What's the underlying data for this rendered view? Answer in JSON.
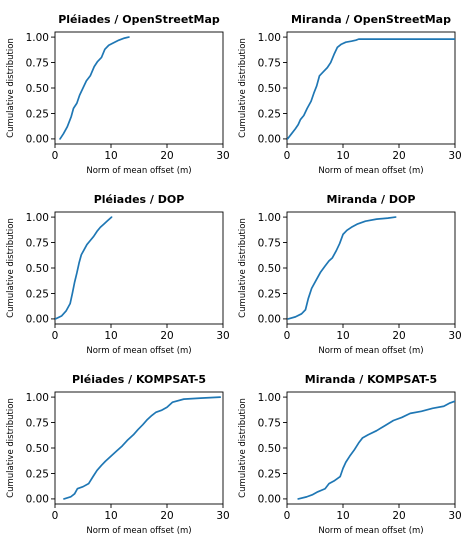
{
  "style": {
    "line_color": "#1f77b4",
    "background": "#ffffff"
  },
  "chart_data": [
    {
      "type": "line",
      "title": "Pléiades / OpenStreetMap",
      "xlabel": "Norm of mean offset (m)",
      "ylabel": "Cumulative distribution",
      "xlim": [
        0,
        30
      ],
      "ylim": [
        0,
        1
      ],
      "xticks": [
        "0",
        "10",
        "20",
        "30"
      ],
      "yticks": [
        "0.00",
        "0.25",
        "0.50",
        "0.75",
        "1.00"
      ],
      "grid": false,
      "series": [
        {
          "x": [
            0.9,
            1.5,
            2.2,
            2.9,
            3.3,
            3.9,
            4.4,
            5.0,
            5.6,
            6.3,
            7.0,
            7.6,
            8.3,
            8.9,
            9.6,
            10.3,
            11.4,
            12.4,
            13.2
          ],
          "y": [
            0.0,
            0.05,
            0.12,
            0.22,
            0.3,
            0.35,
            0.43,
            0.5,
            0.57,
            0.62,
            0.71,
            0.76,
            0.8,
            0.88,
            0.92,
            0.94,
            0.97,
            0.99,
            1.0
          ]
        }
      ]
    },
    {
      "type": "line",
      "title": "Miranda / OpenStreetMap",
      "xlabel": "Norm of mean offset (m)",
      "ylabel": "Cumulative distribution",
      "xlim": [
        0,
        30
      ],
      "ylim": [
        0,
        1
      ],
      "xticks": [
        "0",
        "10",
        "20",
        "30"
      ],
      "yticks": [
        "0.00",
        "0.25",
        "0.50",
        "0.75",
        "1.00"
      ],
      "grid": false,
      "series": [
        {
          "x": [
            0.1,
            0.8,
            1.5,
            2.0,
            2.4,
            3.0,
            3.6,
            4.3,
            4.8,
            5.3,
            5.8,
            6.5,
            7.2,
            7.8,
            8.4,
            9.0,
            9.7,
            10.5,
            11.5,
            12.3,
            12.8,
            30.0
          ],
          "y": [
            0.0,
            0.05,
            0.1,
            0.14,
            0.19,
            0.23,
            0.3,
            0.37,
            0.45,
            0.52,
            0.62,
            0.66,
            0.7,
            0.75,
            0.83,
            0.9,
            0.93,
            0.95,
            0.96,
            0.97,
            0.98,
            0.98
          ]
        }
      ]
    },
    {
      "type": "line",
      "title": "Pléiades / DOP",
      "xlabel": "Norm of mean offset (m)",
      "ylabel": "Cumulative distribution",
      "xlim": [
        0,
        30
      ],
      "ylim": [
        0,
        1
      ],
      "xticks": [
        "0",
        "10",
        "20",
        "30"
      ],
      "yticks": [
        "0.00",
        "0.25",
        "0.50",
        "0.75",
        "1.00"
      ],
      "grid": false,
      "series": [
        {
          "x": [
            0.1,
            1.2,
            2.0,
            2.7,
            3.1,
            3.5,
            3.9,
            4.3,
            4.7,
            5.2,
            5.7,
            6.3,
            6.9,
            7.5,
            8.1,
            8.7,
            9.3,
            9.7,
            10.1
          ],
          "y": [
            0.0,
            0.03,
            0.08,
            0.15,
            0.25,
            0.36,
            0.45,
            0.55,
            0.63,
            0.68,
            0.73,
            0.77,
            0.81,
            0.86,
            0.9,
            0.93,
            0.96,
            0.98,
            1.0
          ]
        }
      ]
    },
    {
      "type": "line",
      "title": "Miranda / DOP",
      "xlabel": "Norm of mean offset (m)",
      "ylabel": "Cumulative distribution",
      "xlim": [
        0,
        30
      ],
      "ylim": [
        0,
        1
      ],
      "xticks": [
        "0",
        "10",
        "20",
        "30"
      ],
      "yticks": [
        "0.00",
        "0.25",
        "0.50",
        "0.75",
        "1.00"
      ],
      "grid": false,
      "series": [
        {
          "x": [
            0.2,
            1.5,
            2.6,
            3.3,
            3.8,
            4.4,
            5.2,
            6.0,
            6.8,
            7.5,
            8.1,
            8.8,
            9.4,
            10.0,
            10.7,
            11.5,
            12.5,
            14.0,
            16.0,
            18.0,
            19.4
          ],
          "y": [
            0.0,
            0.02,
            0.05,
            0.09,
            0.2,
            0.3,
            0.38,
            0.46,
            0.52,
            0.57,
            0.6,
            0.67,
            0.74,
            0.83,
            0.87,
            0.9,
            0.93,
            0.96,
            0.98,
            0.99,
            1.0
          ]
        }
      ]
    },
    {
      "type": "line",
      "title": "Pléiades / KOMPSAT-5",
      "xlabel": "Norm of mean offset (m)",
      "ylabel": "Cumulative distribution",
      "xlim": [
        0,
        30
      ],
      "ylim": [
        0,
        1
      ],
      "xticks": [
        "0",
        "10",
        "20",
        "30"
      ],
      "yticks": [
        "0.00",
        "0.25",
        "0.50",
        "0.75",
        "1.00"
      ],
      "grid": false,
      "series": [
        {
          "x": [
            1.6,
            2.8,
            3.5,
            4.0,
            5.0,
            6.0,
            6.8,
            7.5,
            8.3,
            9.0,
            10.0,
            11.0,
            12.0,
            13.0,
            14.0,
            14.8,
            15.7,
            16.5,
            17.3,
            18.0,
            19.0,
            20.0,
            21.0,
            23.0,
            26.0,
            29.5
          ],
          "y": [
            0.0,
            0.02,
            0.05,
            0.1,
            0.12,
            0.15,
            0.22,
            0.28,
            0.33,
            0.37,
            0.42,
            0.47,
            0.52,
            0.58,
            0.63,
            0.68,
            0.73,
            0.78,
            0.82,
            0.85,
            0.87,
            0.9,
            0.95,
            0.98,
            0.99,
            1.0
          ]
        }
      ]
    },
    {
      "type": "line",
      "title": "Miranda / KOMPSAT-5",
      "xlabel": "Norm of mean offset (m)",
      "ylabel": "Cumulative distribution",
      "xlim": [
        0,
        30
      ],
      "ylim": [
        0,
        1
      ],
      "xticks": [
        "0",
        "10",
        "20",
        "30"
      ],
      "yticks": [
        "0.00",
        "0.25",
        "0.50",
        "0.75",
        "1.00"
      ],
      "grid": false,
      "series": [
        {
          "x": [
            2.0,
            3.5,
            4.5,
            5.5,
            6.8,
            7.5,
            8.5,
            9.5,
            10.0,
            10.5,
            11.2,
            12.0,
            12.8,
            13.5,
            14.5,
            16.0,
            17.5,
            19.0,
            20.5,
            22.0,
            24.0,
            26.0,
            28.0,
            29.0,
            30.0
          ],
          "y": [
            0.0,
            0.02,
            0.04,
            0.07,
            0.1,
            0.15,
            0.18,
            0.22,
            0.3,
            0.36,
            0.42,
            0.48,
            0.55,
            0.6,
            0.63,
            0.67,
            0.72,
            0.77,
            0.8,
            0.84,
            0.86,
            0.89,
            0.91,
            0.94,
            0.96
          ]
        }
      ]
    }
  ]
}
